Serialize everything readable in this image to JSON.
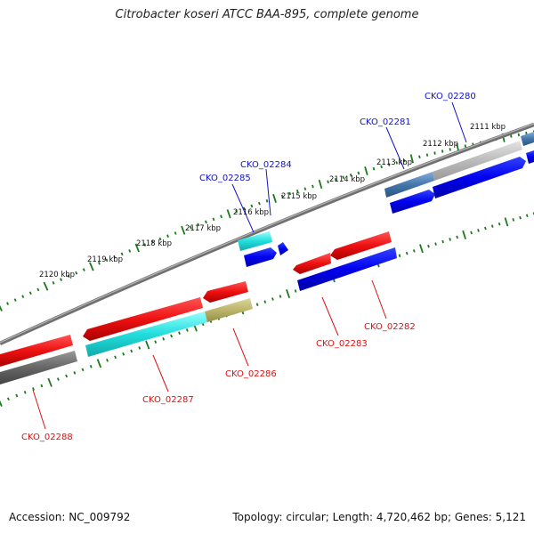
{
  "title": "Citrobacter koseri ATCC BAA-895, complete genome",
  "footer": {
    "accession": "Accession: NC_009792",
    "stats": "Topology: circular; Length: 4,720,462 bp; Genes: 5,121"
  },
  "ticks": [
    {
      "label": "2120 kbp"
    },
    {
      "label": "2119 kbp"
    },
    {
      "label": "2118 kbp"
    },
    {
      "label": "2117 kbp"
    },
    {
      "label": "2116 kbp"
    },
    {
      "label": "2115 kbp"
    },
    {
      "label": "2114 kbp"
    },
    {
      "label": "2113 kbp"
    },
    {
      "label": "2112 kbp"
    },
    {
      "label": "2111 kbp"
    }
  ],
  "genes": [
    {
      "id": "CKO_02288",
      "strand": "minus",
      "color": "#dd1111"
    },
    {
      "id": "CKO_02287",
      "strand": "minus",
      "color": "#dd1111"
    },
    {
      "id": "CKO_02286",
      "strand": "minus",
      "color": "#dd1111"
    },
    {
      "id": "CKO_02285",
      "strand": "plus",
      "color": "#1111cc"
    },
    {
      "id": "CKO_02284",
      "strand": "plus",
      "color": "#1111cc"
    },
    {
      "id": "CKO_02283",
      "strand": "minus",
      "color": "#dd1111"
    },
    {
      "id": "CKO_02282",
      "strand": "minus",
      "color": "#dd1111"
    },
    {
      "id": "CKO_02281",
      "strand": "plus",
      "color": "#1111cc"
    },
    {
      "id": "CKO_02280",
      "strand": "plus",
      "color": "#1111cc"
    }
  ],
  "colors": {
    "plus_label": "#1111cc",
    "minus_label": "#dd1111",
    "tick": "#1a7a1a",
    "backbone": "#808080",
    "cds_plus": "#0000ee",
    "cds_minus": "#ee1111",
    "cog_cyan": "#22dddd",
    "cog_olive": "#bbb46a",
    "cog_steel": "#4477aa",
    "cog_grey": "#666666",
    "cog_lightgrey": "#bbbbbb"
  }
}
